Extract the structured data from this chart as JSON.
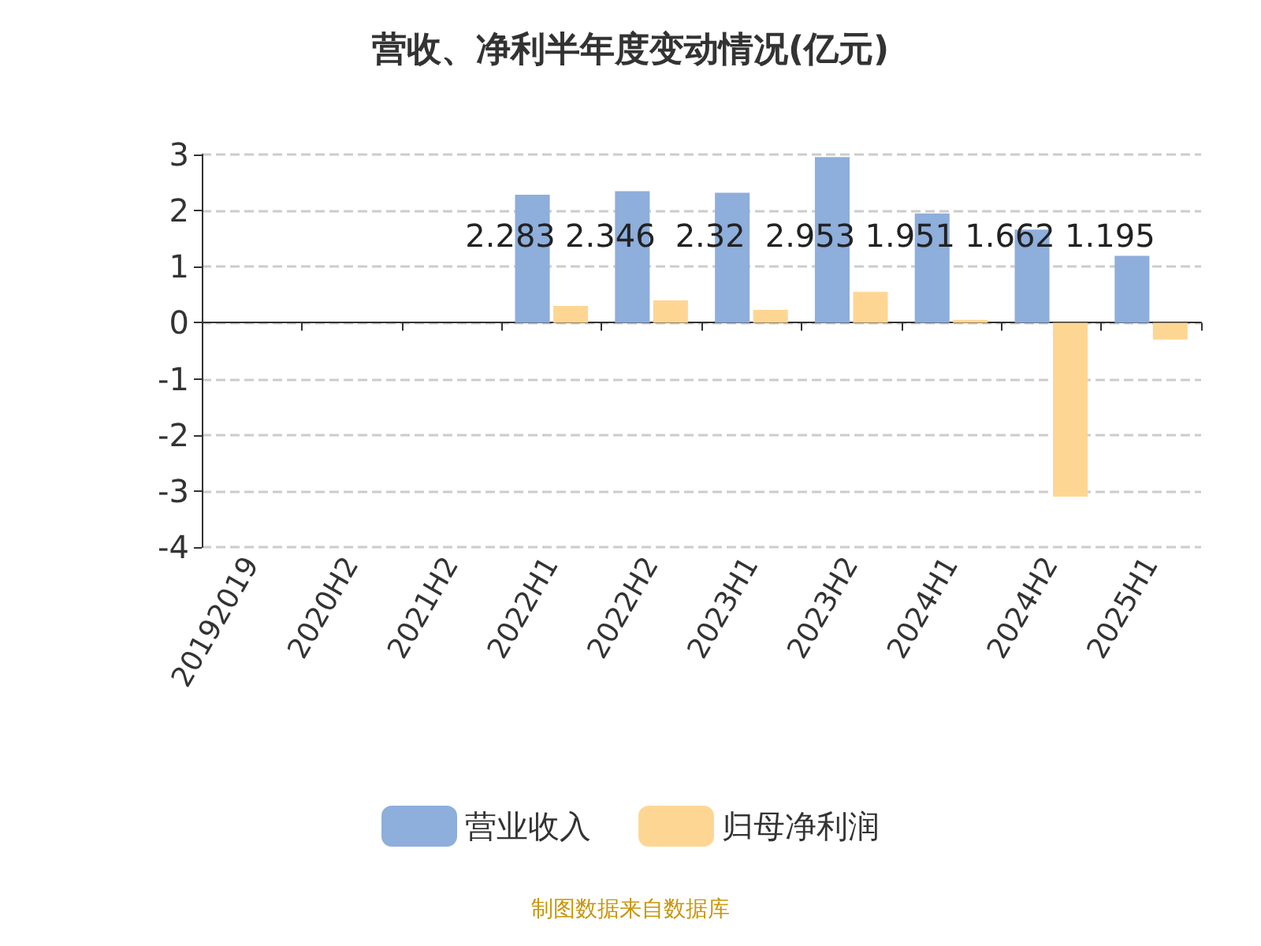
{
  "chart_data": {
    "type": "bar",
    "title": "营收、净利半年度变动情况(亿元)",
    "categories": [
      "20192019",
      "2020H2",
      "2021H2",
      "2022H1",
      "2022H2",
      "2023H1",
      "2023H2",
      "2024H1",
      "2024H2",
      "2025H1"
    ],
    "series": [
      {
        "name": "营业收入",
        "color": "#8eaedb",
        "values": [
          null,
          null,
          null,
          2.283,
          2.346,
          2.32,
          2.953,
          1.951,
          1.662,
          1.195
        ],
        "value_labels": [
          null,
          null,
          null,
          "2.283",
          "2.346",
          "2.32",
          "2.953",
          "1.951",
          "1.662",
          "1.195"
        ]
      },
      {
        "name": "归母净利润",
        "color": "#fed694",
        "values": [
          null,
          null,
          null,
          0.3,
          0.4,
          0.23,
          0.55,
          0.05,
          -3.1,
          -0.3
        ]
      }
    ],
    "ylim": [
      -4,
      3
    ],
    "yticks": [
      -4,
      -3,
      -2,
      -1,
      0,
      1,
      2,
      3
    ],
    "grid": "y",
    "legend": "bottom",
    "annotations": [
      "制图数据来自数据库"
    ]
  }
}
